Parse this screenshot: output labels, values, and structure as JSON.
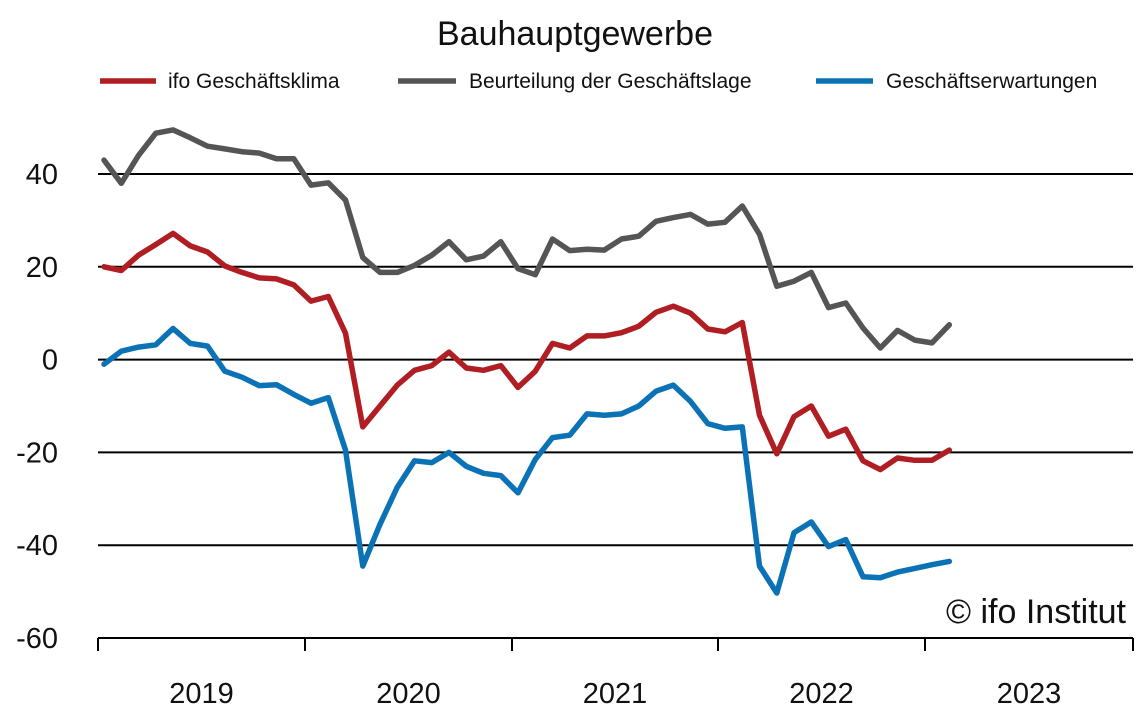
{
  "chart_data": {
    "type": "line",
    "title": "Bauhauptgewerbe",
    "xlabel": "",
    "ylabel": "",
    "ylim": [
      -60,
      50
    ],
    "yticks": [
      40,
      20,
      0,
      -20,
      -40,
      -60
    ],
    "ytick_labels": [
      "40",
      "20",
      "0",
      "-20",
      "-40",
      "-60"
    ],
    "years": [
      "2019",
      "2020",
      "2021",
      "2022",
      "2023"
    ],
    "x_start": "2019-01",
    "legend_position": "top",
    "gridlines_y": true,
    "series": [
      {
        "name": "ifo Geschäftsklima",
        "color": "#b01d22",
        "values": [
          20,
          19.2,
          22.5,
          24.8,
          27.2,
          24.5,
          23.2,
          20.2,
          18.8,
          17.6,
          17.4,
          16.1,
          12.6,
          13.6,
          5.7,
          -14.5,
          -10,
          -5.5,
          -2.3,
          -1.3,
          1.6,
          -1.8,
          -2.3,
          -1.3,
          -6,
          -2.5,
          3.5,
          2.5,
          5.1,
          5.1,
          5.8,
          7.2,
          10.2,
          11.5,
          10,
          6.6,
          6,
          8,
          -12,
          -20.3,
          -12.3,
          -10,
          -16.5,
          -15,
          -21.8,
          -23.7,
          -21.2,
          -21.7,
          -21.7,
          -19.5
        ]
      },
      {
        "name": "Beurteilung der Geschäftslage",
        "color": "#555555",
        "values": [
          43,
          38,
          44,
          48.8,
          49.5,
          47.8,
          46,
          45.4,
          44.8,
          44.5,
          43.3,
          43.3,
          37.6,
          38.1,
          34.4,
          22,
          18.8,
          18.8,
          20.3,
          22.5,
          25.4,
          21.5,
          22.3,
          25.4,
          19.6,
          18.3,
          26,
          23.5,
          23.8,
          23.6,
          26,
          26.6,
          29.8,
          30.6,
          31.3,
          29.2,
          29.6,
          33.1,
          27,
          15.8,
          16.9,
          18.8,
          11.2,
          12.2,
          6.8,
          2.5,
          6.3,
          4.2,
          3.6,
          7.5
        ]
      },
      {
        "name": "Geschäftserwartungen",
        "color": "#0b72b5",
        "values": [
          -1,
          1.8,
          2.7,
          3.2,
          6.7,
          3.5,
          2.9,
          -2.5,
          -3.8,
          -5.6,
          -5.4,
          -7.5,
          -9.4,
          -8.2,
          -19.5,
          -44.5,
          -35.5,
          -27.5,
          -21.8,
          -22.2,
          -20,
          -23,
          -24.5,
          -25,
          -28.7,
          -21.5,
          -16.8,
          -16.3,
          -11.7,
          -12,
          -11.7,
          -10,
          -6.8,
          -5.5,
          -9,
          -13.8,
          -14.8,
          -14.5,
          -44.5,
          -50.3,
          -37.3,
          -35,
          -40.3,
          -38.8,
          -46.8,
          -47,
          -45.8,
          -45,
          -44.2,
          -43.5
        ]
      }
    ]
  },
  "copyright": "© ifo Institut"
}
